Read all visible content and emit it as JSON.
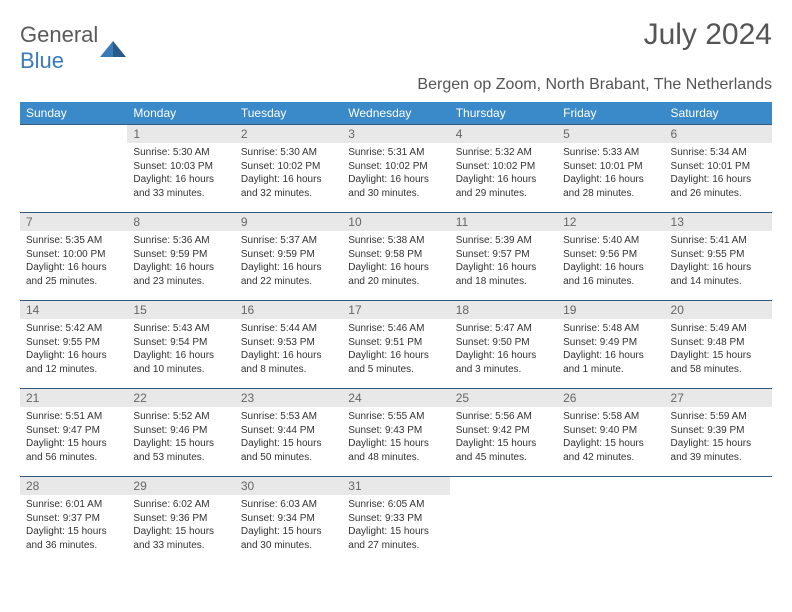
{
  "logo": {
    "part1": "General",
    "part2": "Blue"
  },
  "title": "July 2024",
  "location": "Bergen op Zoom, North Brabant, The Netherlands",
  "colors": {
    "header_bg": "#3a89c9",
    "header_fg": "#ffffff",
    "daynum_bg": "#e8e8e8",
    "daynum_fg": "#666666",
    "border": "#3a5a7a",
    "text": "#333333",
    "logo_gray": "#5a5a5a",
    "logo_blue": "#3a7ab8"
  },
  "weekdays": [
    "Sunday",
    "Monday",
    "Tuesday",
    "Wednesday",
    "Thursday",
    "Friday",
    "Saturday"
  ],
  "cells": [
    {
      "empty": true
    },
    {
      "day": "1",
      "sunrise": "5:30 AM",
      "sunset": "10:03 PM",
      "daylight": "16 hours and 33 minutes."
    },
    {
      "day": "2",
      "sunrise": "5:30 AM",
      "sunset": "10:02 PM",
      "daylight": "16 hours and 32 minutes."
    },
    {
      "day": "3",
      "sunrise": "5:31 AM",
      "sunset": "10:02 PM",
      "daylight": "16 hours and 30 minutes."
    },
    {
      "day": "4",
      "sunrise": "5:32 AM",
      "sunset": "10:02 PM",
      "daylight": "16 hours and 29 minutes."
    },
    {
      "day": "5",
      "sunrise": "5:33 AM",
      "sunset": "10:01 PM",
      "daylight": "16 hours and 28 minutes."
    },
    {
      "day": "6",
      "sunrise": "5:34 AM",
      "sunset": "10:01 PM",
      "daylight": "16 hours and 26 minutes."
    },
    {
      "day": "7",
      "sunrise": "5:35 AM",
      "sunset": "10:00 PM",
      "daylight": "16 hours and 25 minutes."
    },
    {
      "day": "8",
      "sunrise": "5:36 AM",
      "sunset": "9:59 PM",
      "daylight": "16 hours and 23 minutes."
    },
    {
      "day": "9",
      "sunrise": "5:37 AM",
      "sunset": "9:59 PM",
      "daylight": "16 hours and 22 minutes."
    },
    {
      "day": "10",
      "sunrise": "5:38 AM",
      "sunset": "9:58 PM",
      "daylight": "16 hours and 20 minutes."
    },
    {
      "day": "11",
      "sunrise": "5:39 AM",
      "sunset": "9:57 PM",
      "daylight": "16 hours and 18 minutes."
    },
    {
      "day": "12",
      "sunrise": "5:40 AM",
      "sunset": "9:56 PM",
      "daylight": "16 hours and 16 minutes."
    },
    {
      "day": "13",
      "sunrise": "5:41 AM",
      "sunset": "9:55 PM",
      "daylight": "16 hours and 14 minutes."
    },
    {
      "day": "14",
      "sunrise": "5:42 AM",
      "sunset": "9:55 PM",
      "daylight": "16 hours and 12 minutes."
    },
    {
      "day": "15",
      "sunrise": "5:43 AM",
      "sunset": "9:54 PM",
      "daylight": "16 hours and 10 minutes."
    },
    {
      "day": "16",
      "sunrise": "5:44 AM",
      "sunset": "9:53 PM",
      "daylight": "16 hours and 8 minutes."
    },
    {
      "day": "17",
      "sunrise": "5:46 AM",
      "sunset": "9:51 PM",
      "daylight": "16 hours and 5 minutes."
    },
    {
      "day": "18",
      "sunrise": "5:47 AM",
      "sunset": "9:50 PM",
      "daylight": "16 hours and 3 minutes."
    },
    {
      "day": "19",
      "sunrise": "5:48 AM",
      "sunset": "9:49 PM",
      "daylight": "16 hours and 1 minute."
    },
    {
      "day": "20",
      "sunrise": "5:49 AM",
      "sunset": "9:48 PM",
      "daylight": "15 hours and 58 minutes."
    },
    {
      "day": "21",
      "sunrise": "5:51 AM",
      "sunset": "9:47 PM",
      "daylight": "15 hours and 56 minutes."
    },
    {
      "day": "22",
      "sunrise": "5:52 AM",
      "sunset": "9:46 PM",
      "daylight": "15 hours and 53 minutes."
    },
    {
      "day": "23",
      "sunrise": "5:53 AM",
      "sunset": "9:44 PM",
      "daylight": "15 hours and 50 minutes."
    },
    {
      "day": "24",
      "sunrise": "5:55 AM",
      "sunset": "9:43 PM",
      "daylight": "15 hours and 48 minutes."
    },
    {
      "day": "25",
      "sunrise": "5:56 AM",
      "sunset": "9:42 PM",
      "daylight": "15 hours and 45 minutes."
    },
    {
      "day": "26",
      "sunrise": "5:58 AM",
      "sunset": "9:40 PM",
      "daylight": "15 hours and 42 minutes."
    },
    {
      "day": "27",
      "sunrise": "5:59 AM",
      "sunset": "9:39 PM",
      "daylight": "15 hours and 39 minutes."
    },
    {
      "day": "28",
      "sunrise": "6:01 AM",
      "sunset": "9:37 PM",
      "daylight": "15 hours and 36 minutes."
    },
    {
      "day": "29",
      "sunrise": "6:02 AM",
      "sunset": "9:36 PM",
      "daylight": "15 hours and 33 minutes."
    },
    {
      "day": "30",
      "sunrise": "6:03 AM",
      "sunset": "9:34 PM",
      "daylight": "15 hours and 30 minutes."
    },
    {
      "day": "31",
      "sunrise": "6:05 AM",
      "sunset": "9:33 PM",
      "daylight": "15 hours and 27 minutes."
    },
    {
      "empty": true
    },
    {
      "empty": true
    },
    {
      "empty": true
    }
  ]
}
